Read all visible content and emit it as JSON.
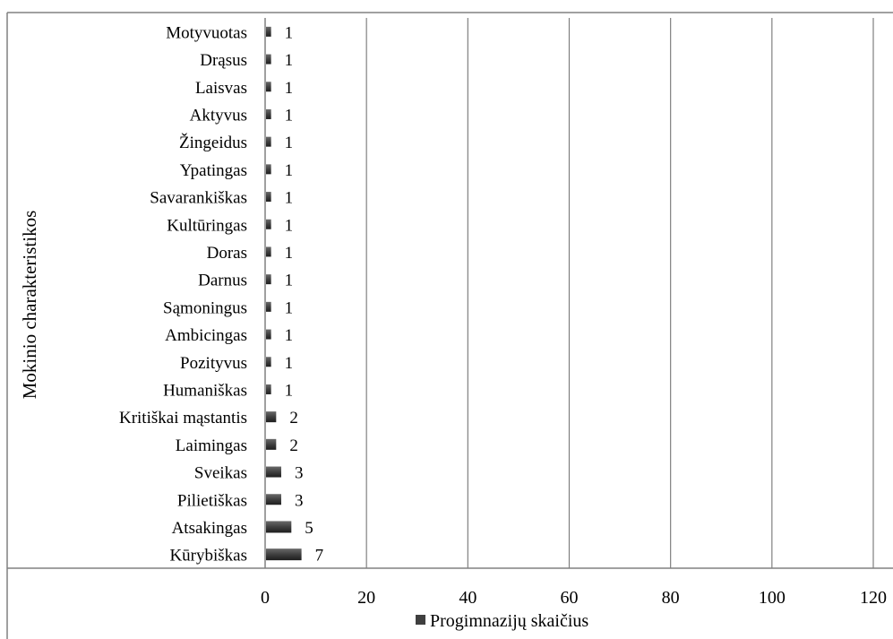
{
  "chart_data": {
    "type": "bar",
    "orientation": "horizontal",
    "categories": [
      "Motyvuotas",
      "Drąsus",
      "Laisvas",
      "Aktyvus",
      "Žingeidus",
      "Ypatingas",
      "Savarankiškas",
      "Kultūringas",
      "Doras",
      "Darnus",
      "Sąmoningus",
      "Ambicingas",
      "Pozityvus",
      "Humaniškas",
      "Kritiškai mąstantis",
      "Laimingas",
      "Sveikas",
      "Pilietiškas",
      "Atsakingas",
      "Kūrybiškas"
    ],
    "series": [
      {
        "name": "Progimnazijų skaičius",
        "values": [
          1,
          1,
          1,
          1,
          1,
          1,
          1,
          1,
          1,
          1,
          1,
          1,
          1,
          1,
          2,
          2,
          3,
          3,
          5,
          7
        ]
      }
    ],
    "data_labels": [
      "1",
      "1",
      "1",
      "1",
      "1",
      "1",
      "1",
      "1",
      "1",
      "1",
      "1",
      "1",
      "1",
      "1",
      "2",
      "2",
      "3",
      "3",
      "5",
      "7"
    ],
    "ylabel": "Mokinio charakteristikos",
    "xlabel": "",
    "xlim": [
      0,
      120
    ],
    "x_ticks": [
      "0",
      "20",
      "40",
      "60",
      "80",
      "100",
      "120"
    ],
    "grid": "vertical",
    "legend": "bottom",
    "colors": {
      "bar": "#3f3f3f",
      "grid": "#808080",
      "border": "#808080"
    }
  }
}
